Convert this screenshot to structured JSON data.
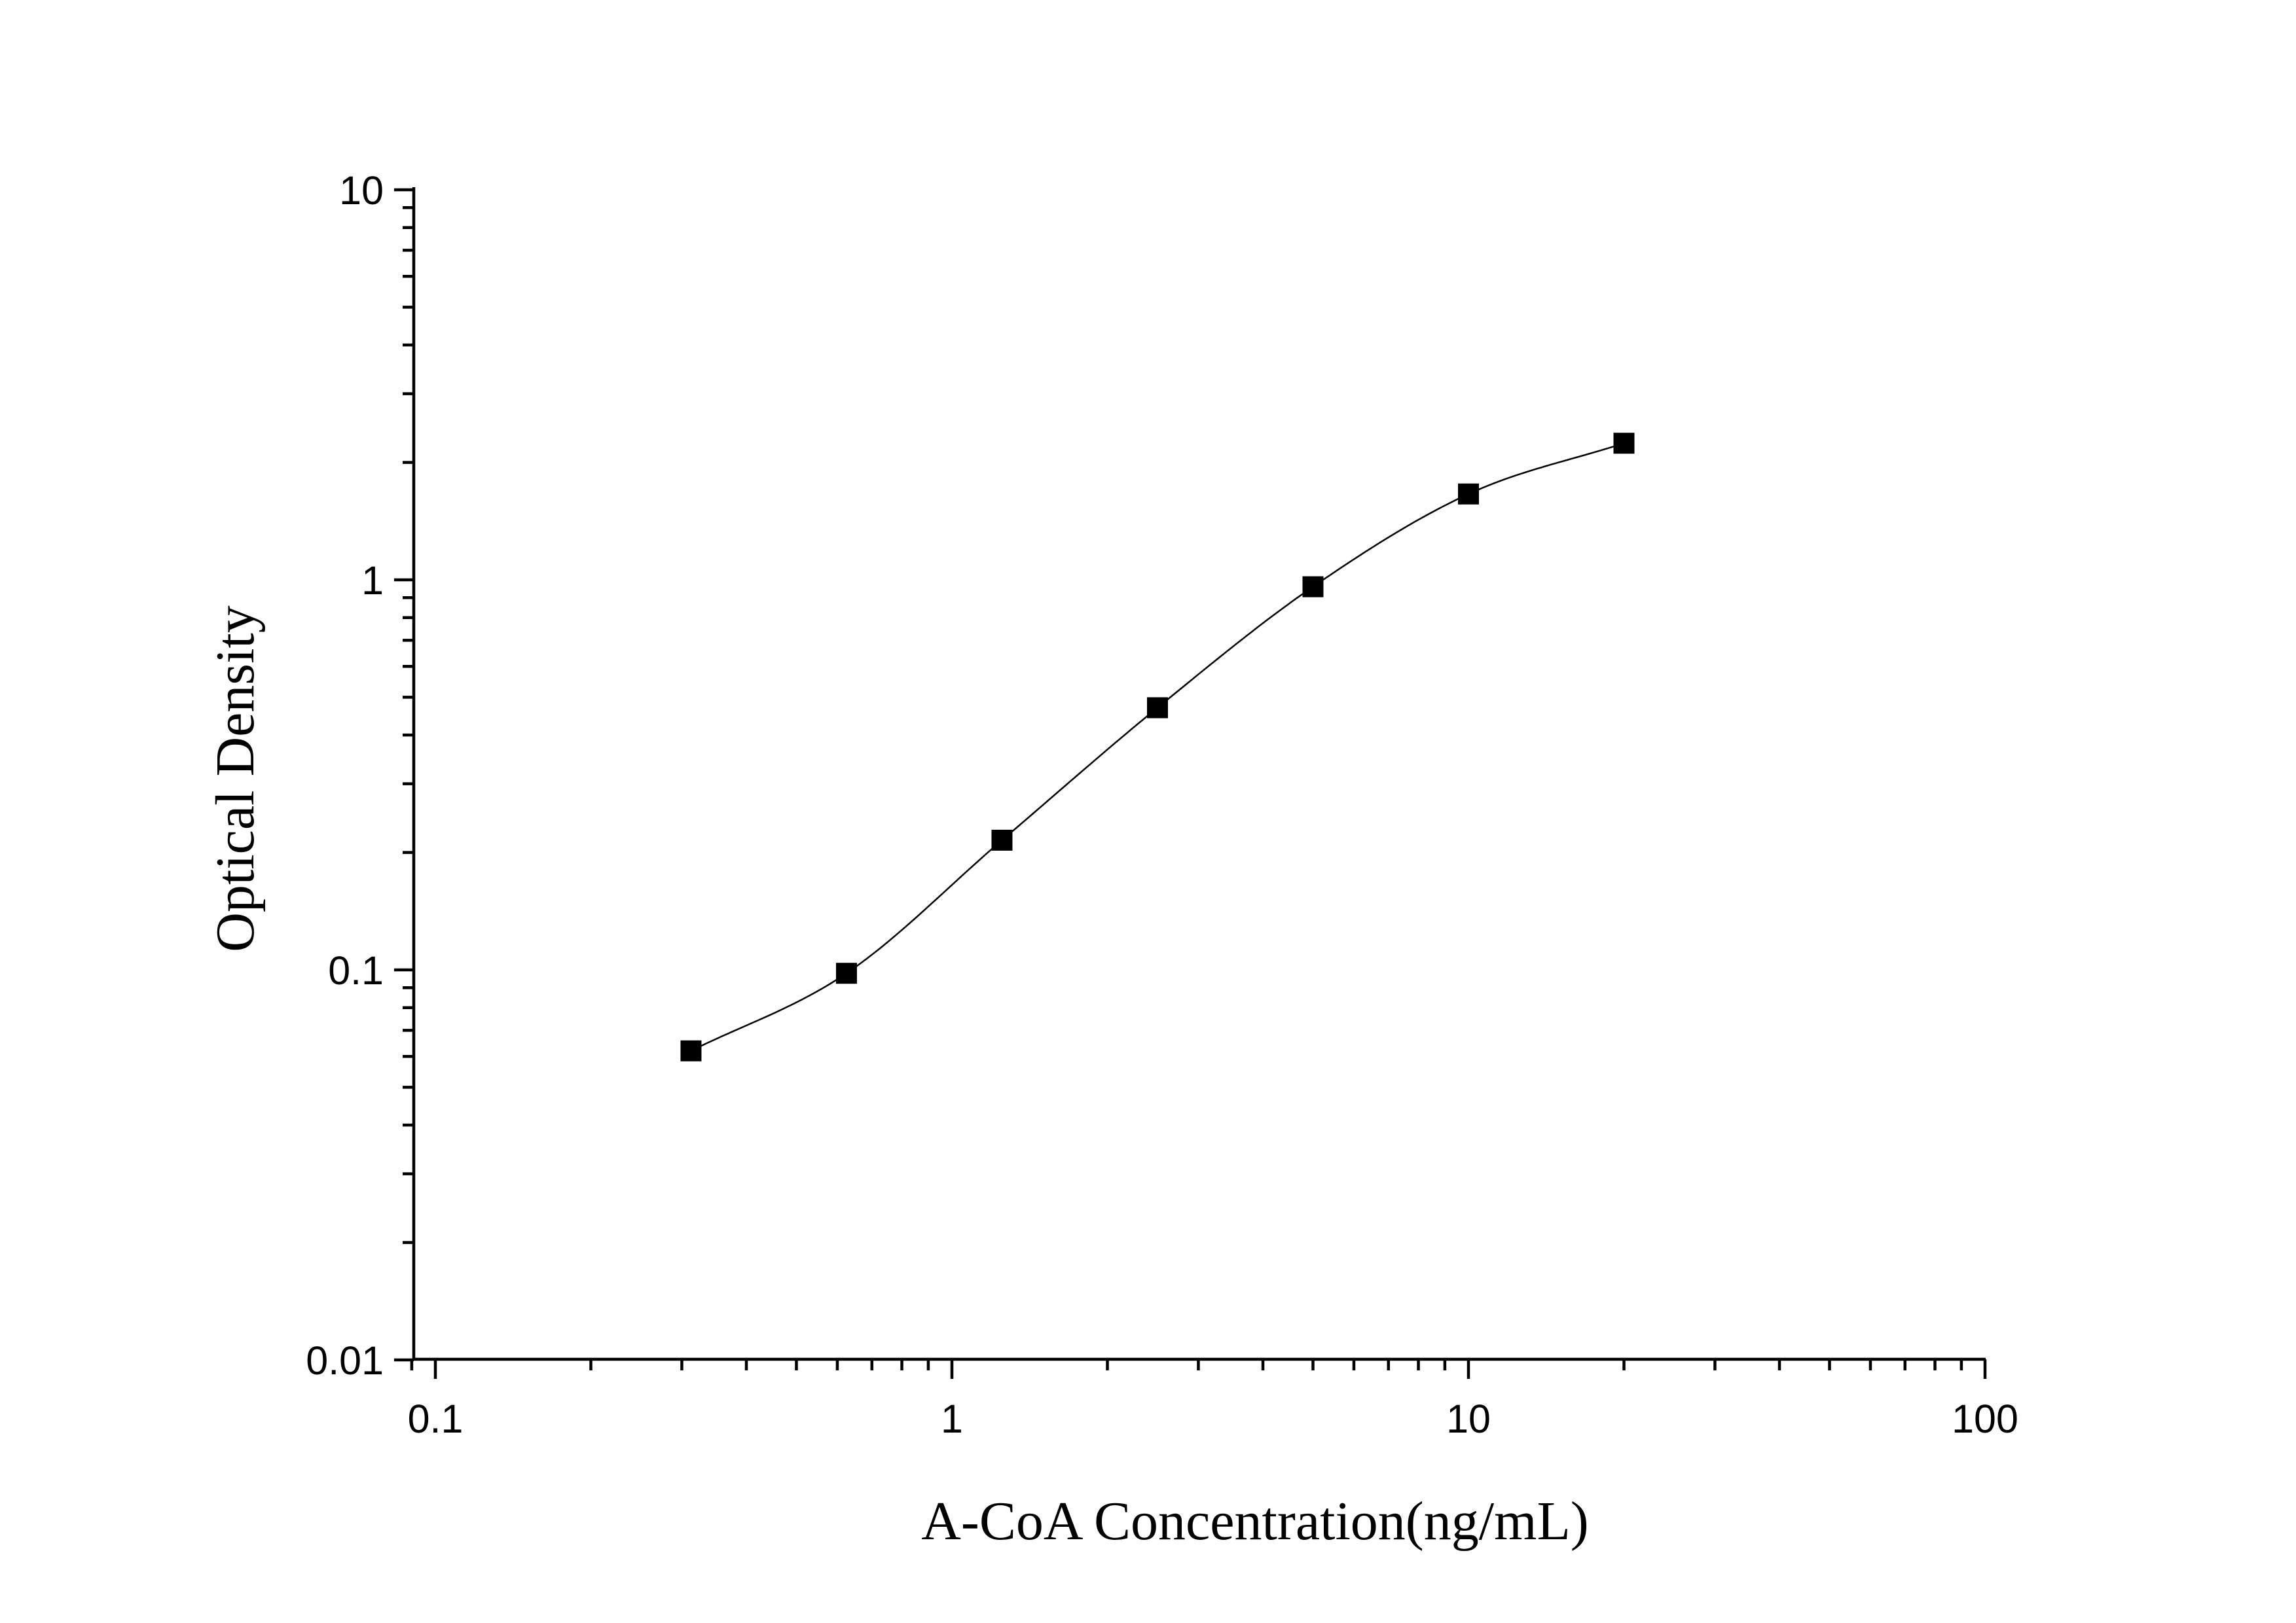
{
  "chart_data": {
    "type": "scatter",
    "title": "",
    "xlabel": "A-CoA Concentration(ng/mL)",
    "ylabel": "Optical Density",
    "x_scale": "log",
    "y_scale": "log",
    "xlim": [
      0.09,
      100
    ],
    "ylim": [
      0.01,
      10
    ],
    "x_ticks": [
      {
        "value": 0.1,
        "label": "0.1"
      },
      {
        "value": 1,
        "label": "1"
      },
      {
        "value": 10,
        "label": "10"
      },
      {
        "value": 100,
        "label": "100"
      }
    ],
    "y_ticks": [
      {
        "value": 0.01,
        "label": "0.01"
      },
      {
        "value": 0.1,
        "label": "0.1"
      },
      {
        "value": 1,
        "label": "1"
      },
      {
        "value": 10,
        "label": "10"
      }
    ],
    "grid": false,
    "legend": "none",
    "series": [
      {
        "marker": "square",
        "color": "#000000",
        "x": [
          0.3125,
          0.625,
          1.25,
          2.5,
          5,
          10,
          20
        ],
        "y": [
          0.062,
          0.098,
          0.215,
          0.47,
          0.96,
          1.66,
          2.24
        ]
      }
    ],
    "fit_curve": {
      "type": "4-parameter logistic",
      "color": "#000000"
    }
  }
}
